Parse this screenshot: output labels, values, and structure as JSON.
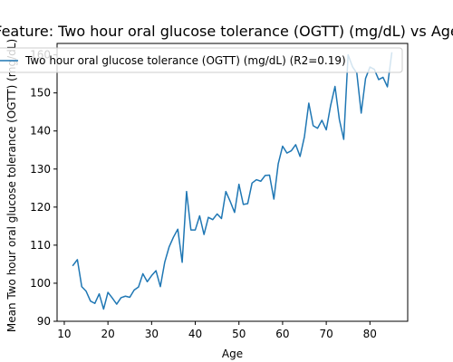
{
  "chart_data": {
    "type": "line",
    "title": "Feature: Two hour oral glucose tolerance (OGTT) (mg/dL) vs Age",
    "xlabel": "Age",
    "ylabel": "Mean Two hour oral glucose tolerance (OGTT) (mg/dL)",
    "xlim": [
      8.35,
      88.65
    ],
    "ylim": [
      90,
      163
    ],
    "xticks": [
      10,
      20,
      30,
      40,
      50,
      60,
      70,
      80
    ],
    "yticks": [
      90,
      100,
      110,
      120,
      130,
      140,
      150,
      160
    ],
    "grid": false,
    "legend_position": "top",
    "series": [
      {
        "name": "Two hour oral glucose tolerance (OGTT) (mg/dL) (R2=0.19)",
        "color": "#1f77b4",
        "x": [
          12,
          13,
          14,
          15,
          16,
          17,
          18,
          19,
          20,
          21,
          22,
          23,
          24,
          25,
          26,
          27,
          28,
          29,
          30,
          31,
          32,
          33,
          34,
          35,
          36,
          37,
          38,
          39,
          40,
          41,
          42,
          43,
          44,
          45,
          46,
          47,
          48,
          49,
          50,
          51,
          52,
          53,
          54,
          55,
          56,
          57,
          58,
          59,
          60,
          61,
          62,
          63,
          64,
          65,
          66,
          67,
          68,
          69,
          70,
          71,
          72,
          73,
          74,
          75,
          76,
          77,
          78,
          79,
          80,
          81,
          82,
          83,
          84,
          85
        ],
        "y": [
          104.7,
          106.2,
          99.1,
          97.9,
          95.3,
          94.7,
          97.2,
          93.2,
          97.6,
          96.1,
          94.5,
          96.2,
          96.6,
          96.3,
          98.2,
          99.0,
          102.5,
          100.4,
          102.0,
          103.3,
          99.1,
          105.5,
          109.5,
          112.1,
          114.2,
          105.5,
          124.1,
          114.0,
          114.0,
          117.7,
          112.8,
          117.3,
          116.7,
          118.2,
          117.0,
          124.1,
          121.5,
          118.6,
          126.0,
          120.7,
          120.9,
          126.3,
          127.2,
          126.8,
          128.3,
          128.4,
          122.1,
          131.4,
          136.0,
          134.2,
          134.8,
          136.4,
          133.3,
          138.5,
          147.3,
          141.4,
          140.7,
          142.8,
          140.3,
          146.7,
          151.7,
          143.0,
          137.8,
          160.0,
          156.9,
          155.2,
          144.7,
          153.8,
          156.8,
          156.2,
          153.5,
          154.1,
          151.6,
          160.5
        ]
      }
    ]
  }
}
